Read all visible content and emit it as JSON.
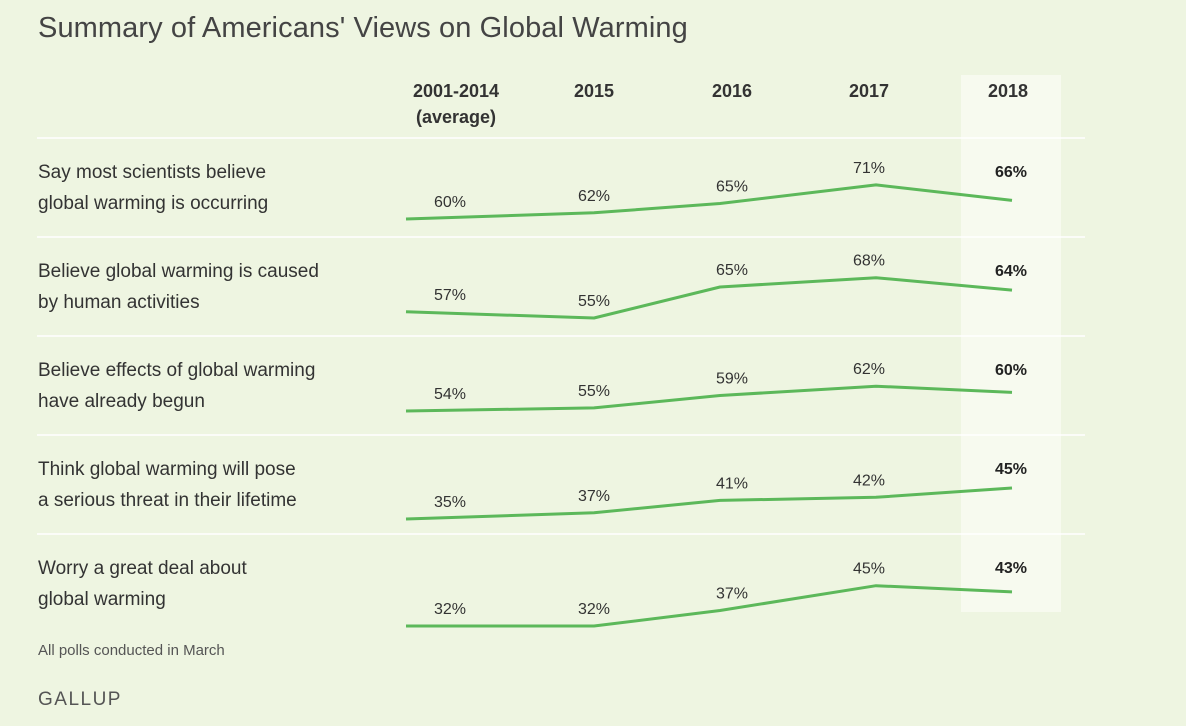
{
  "chart_data": {
    "type": "line",
    "title": "Summary of Americans' Views on Global Warming",
    "categories": [
      [
        "2001-2014",
        "(average)"
      ],
      [
        "2015"
      ],
      [
        "2016"
      ],
      [
        "2017"
      ],
      [
        "2018"
      ]
    ],
    "highlight_category_index": 4,
    "series": [
      {
        "name": "Say most scientists believe global warming is occurring",
        "label_lines": [
          "Say most scientists believe",
          "global warming is occurring"
        ],
        "values": [
          60,
          62,
          65,
          71,
          66
        ]
      },
      {
        "name": "Believe global warming is caused by human activities",
        "label_lines": [
          "Believe global warming is caused",
          "by human activities"
        ],
        "values": [
          57,
          55,
          65,
          68,
          64
        ]
      },
      {
        "name": "Believe effects of global warming have already begun",
        "label_lines": [
          "Believe effects of global warming",
          "have already begun"
        ],
        "values": [
          54,
          55,
          59,
          62,
          60
        ]
      },
      {
        "name": "Think global warming will pose a serious threat in their lifetime",
        "label_lines": [
          "Think global warming will pose",
          "a serious threat in their lifetime"
        ],
        "values": [
          35,
          37,
          41,
          42,
          45
        ]
      },
      {
        "name": "Worry a great deal about global warming",
        "label_lines": [
          "Worry a great deal about",
          "global warming"
        ],
        "values": [
          32,
          32,
          37,
          45,
          43
        ]
      }
    ],
    "value_suffix": "%",
    "line_color": "#5cb85a",
    "highlight_color": "#f7faef",
    "divider_color": "#ffffff",
    "footnote": "All polls conducted in March",
    "source": "GALLUP"
  }
}
